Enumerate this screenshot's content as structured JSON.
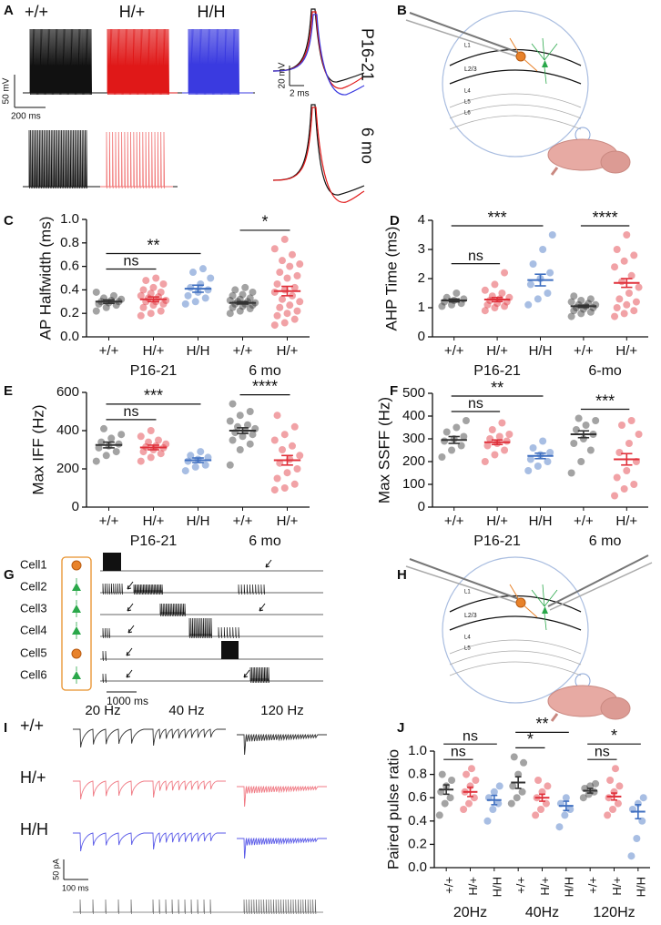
{
  "panel_labels": [
    "A",
    "B",
    "C",
    "D",
    "E",
    "F",
    "G",
    "H",
    "I",
    "J"
  ],
  "a": {
    "genotypes": [
      "+/+",
      "H/+",
      "H/H"
    ],
    "ages": [
      "P16-21",
      "6 mo"
    ],
    "scale_v": "50 mV",
    "scale_t": "200 ms",
    "inset_v": "20 mV",
    "inset_t": "2 ms"
  },
  "b": {
    "layers": [
      "L1",
      "L2/3",
      "L4",
      "L5",
      "L6"
    ]
  },
  "g": {
    "cells": [
      "Cell1",
      "Cell2",
      "Cell3",
      "Cell4",
      "Cell5",
      "Cell6"
    ],
    "scale_t": "1000 ms"
  },
  "h": {
    "layers": [
      "L1",
      "L2/3",
      "L4",
      "L5"
    ]
  },
  "i": {
    "frequencies": [
      "20 Hz",
      "40 Hz",
      "120 Hz"
    ],
    "genotypes": [
      "+/+",
      "H/+",
      "H/H"
    ],
    "scale_i": "50 pA",
    "scale_t": "100 ms"
  },
  "chart_data": [
    {
      "type": "strip",
      "ylabel": "AP Halfwidth (ms)",
      "ylim": [
        0,
        1
      ],
      "yticks": [
        {
          "value": 0,
          "label": "0.0"
        },
        0.2,
        0.4,
        0.6,
        0.8,
        {
          "value": 1,
          "label": "1.0"
        }
      ],
      "groups": [
        {
          "name": "P16-21",
          "categories": [
            {
              "name": "+/+",
              "color": "#333333",
              "mean": 0.3,
              "sem": 0.015,
              "points": [
                0.22,
                0.25,
                0.27,
                0.28,
                0.29,
                0.3,
                0.3,
                0.31,
                0.32,
                0.33,
                0.35,
                0.38
              ]
            },
            {
              "name": "H/+",
              "color": "#e0303a",
              "mean": 0.32,
              "sem": 0.02,
              "points": [
                0.18,
                0.2,
                0.22,
                0.25,
                0.27,
                0.28,
                0.3,
                0.3,
                0.31,
                0.33,
                0.34,
                0.35,
                0.37,
                0.38,
                0.4,
                0.42,
                0.45,
                0.48,
                0.5
              ]
            },
            {
              "name": "H/H",
              "color": "#3f6fc0",
              "mean": 0.41,
              "sem": 0.03,
              "points": [
                0.28,
                0.3,
                0.33,
                0.35,
                0.38,
                0.4,
                0.42,
                0.45,
                0.5,
                0.55,
                0.58
              ]
            }
          ]
        },
        {
          "name": "6 mo",
          "categories": [
            {
              "name": "+/+",
              "color": "#333333",
              "mean": 0.29,
              "sem": 0.01,
              "points": [
                0.2,
                0.22,
                0.24,
                0.25,
                0.26,
                0.27,
                0.28,
                0.28,
                0.29,
                0.3,
                0.3,
                0.31,
                0.32,
                0.33,
                0.35,
                0.36,
                0.38,
                0.4,
                0.42
              ]
            },
            {
              "name": "H/+",
              "color": "#e0303a",
              "mean": 0.39,
              "sem": 0.04,
              "points": [
                0.1,
                0.12,
                0.15,
                0.18,
                0.2,
                0.22,
                0.25,
                0.27,
                0.3,
                0.32,
                0.35,
                0.38,
                0.4,
                0.42,
                0.45,
                0.5,
                0.52,
                0.55,
                0.6,
                0.62,
                0.65,
                0.7,
                0.75,
                0.83
              ]
            }
          ]
        }
      ],
      "comparisons": [
        {
          "label": "ns",
          "pair": [
            0,
            1
          ]
        },
        {
          "label": "**",
          "pair": [
            0,
            2
          ]
        },
        {
          "label": "*",
          "pair": [
            3,
            4
          ]
        }
      ]
    },
    {
      "type": "strip",
      "ylabel": "AHP Time (ms)",
      "ylim": [
        0,
        4
      ],
      "yticks": [
        0,
        1,
        2,
        3,
        4
      ],
      "groups": [
        {
          "name": "P16-21",
          "categories": [
            {
              "name": "+/+",
              "color": "#333333",
              "mean": 1.25,
              "sem": 0.05,
              "points": [
                1.05,
                1.1,
                1.15,
                1.2,
                1.25,
                1.3,
                1.35,
                1.5
              ]
            },
            {
              "name": "H/+",
              "color": "#e0303a",
              "mean": 1.28,
              "sem": 0.07,
              "points": [
                0.9,
                1.0,
                1.05,
                1.1,
                1.15,
                1.2,
                1.25,
                1.3,
                1.35,
                1.4,
                1.5,
                1.6,
                1.8,
                2.2
              ]
            },
            {
              "name": "H/H",
              "color": "#3f6fc0",
              "mean": 1.95,
              "sem": 0.2,
              "points": [
                1.1,
                1.3,
                1.5,
                1.8,
                2.0,
                2.2,
                2.5,
                3.0,
                3.5
              ]
            }
          ]
        },
        {
          "name": "6-mo",
          "categories": [
            {
              "name": "+/+",
              "color": "#333333",
              "mean": 1.05,
              "sem": 0.04,
              "points": [
                0.7,
                0.8,
                0.85,
                0.9,
                0.95,
                1.0,
                1.0,
                1.05,
                1.1,
                1.1,
                1.15,
                1.2,
                1.25,
                1.3,
                1.4
              ]
            },
            {
              "name": "H/+",
              "color": "#e0303a",
              "mean": 1.85,
              "sem": 0.15,
              "points": [
                0.7,
                0.8,
                0.9,
                1.0,
                1.1,
                1.2,
                1.3,
                1.5,
                1.7,
                1.9,
                2.1,
                2.4,
                2.6,
                2.8,
                3.0,
                3.5
              ]
            }
          ]
        }
      ],
      "comparisons": [
        {
          "label": "ns",
          "pair": [
            0,
            1
          ]
        },
        {
          "label": "***",
          "pair": [
            0,
            2
          ]
        },
        {
          "label": "****",
          "pair": [
            3,
            4
          ]
        }
      ]
    },
    {
      "type": "strip",
      "ylabel": "Max IFF (Hz)",
      "ylim": [
        0,
        600
      ],
      "yticks": [
        0,
        200,
        400,
        600
      ],
      "groups": [
        {
          "name": "P16-21",
          "categories": [
            {
              "name": "+/+",
              "color": "#333333",
              "mean": 325,
              "sem": 15,
              "points": [
                240,
                270,
                290,
                310,
                320,
                330,
                340,
                360,
                380,
                410
              ]
            },
            {
              "name": "H/+",
              "color": "#e0303a",
              "mean": 312,
              "sem": 12,
              "points": [
                240,
                260,
                280,
                290,
                300,
                310,
                315,
                320,
                330,
                340,
                350,
                370,
                400
              ]
            },
            {
              "name": "H/H",
              "color": "#3f6fc0",
              "mean": 245,
              "sem": 12,
              "points": [
                190,
                210,
                220,
                240,
                250,
                260,
                270,
                290
              ]
            }
          ]
        },
        {
          "name": "6 mo",
          "categories": [
            {
              "name": "+/+",
              "color": "#333333",
              "mean": 400,
              "sem": 15,
              "points": [
                220,
                300,
                330,
                350,
                370,
                380,
                390,
                400,
                410,
                420,
                430,
                450,
                480,
                500,
                540
              ]
            },
            {
              "name": "H/+",
              "color": "#e0303a",
              "mean": 245,
              "sem": 25,
              "points": [
                90,
                100,
                120,
                150,
                180,
                200,
                230,
                250,
                270,
                300,
                320,
                350,
                380,
                420,
                480
              ]
            }
          ]
        }
      ],
      "comparisons": [
        {
          "label": "ns",
          "pair": [
            0,
            1
          ]
        },
        {
          "label": "***",
          "pair": [
            0,
            2
          ]
        },
        {
          "label": "****",
          "pair": [
            3,
            4
          ]
        }
      ]
    },
    {
      "type": "strip",
      "ylabel": "Max SSFF (Hz)",
      "ylim": [
        0,
        500
      ],
      "yticks": [
        0,
        100,
        200,
        300,
        400,
        500
      ],
      "groups": [
        {
          "name": "P16-21",
          "categories": [
            {
              "name": "+/+",
              "color": "#333333",
              "mean": 295,
              "sem": 15,
              "points": [
                220,
                250,
                270,
                290,
                300,
                310,
                330,
                350,
                380
              ]
            },
            {
              "name": "H/+",
              "color": "#e0303a",
              "mean": 285,
              "sem": 10,
              "points": [
                200,
                230,
                250,
                270,
                280,
                290,
                300,
                310,
                320,
                340,
                370
              ]
            },
            {
              "name": "H/H",
              "color": "#3f6fc0",
              "mean": 225,
              "sem": 12,
              "points": [
                160,
                180,
                200,
                210,
                230,
                240,
                260,
                290
              ]
            }
          ]
        },
        {
          "name": "6 mo",
          "categories": [
            {
              "name": "+/+",
              "color": "#333333",
              "mean": 320,
              "sem": 15,
              "points": [
                150,
                200,
                250,
                280,
                300,
                320,
                340,
                360,
                380,
                390
              ]
            },
            {
              "name": "H/+",
              "color": "#e0303a",
              "mean": 210,
              "sem": 25,
              "points": [
                50,
                80,
                100,
                130,
                160,
                200,
                240,
                280,
                320,
                360,
                380
              ]
            }
          ]
        }
      ],
      "comparisons": [
        {
          "label": "ns",
          "pair": [
            0,
            1
          ]
        },
        {
          "label": "**",
          "pair": [
            0,
            2
          ]
        },
        {
          "label": "***",
          "pair": [
            3,
            4
          ]
        }
      ]
    },
    {
      "type": "strip",
      "ylabel": "Paired pulse ratio",
      "ylim": [
        0,
        1
      ],
      "yticks": [
        {
          "value": 0,
          "label": "0.0"
        },
        0.2,
        0.4,
        0.6,
        0.8,
        {
          "value": 1,
          "label": "1.0"
        }
      ],
      "groups": [
        {
          "name": "20Hz",
          "categories": [
            {
              "name": "+/+",
              "color": "#333333",
              "mean": 0.67,
              "sem": 0.04,
              "points": [
                0.45,
                0.55,
                0.6,
                0.65,
                0.7,
                0.75,
                0.8
              ]
            },
            {
              "name": "H/+",
              "color": "#e0303a",
              "mean": 0.65,
              "sem": 0.04,
              "points": [
                0.5,
                0.55,
                0.6,
                0.65,
                0.7,
                0.75,
                0.8,
                0.85
              ]
            },
            {
              "name": "H/H",
              "color": "#3f6fc0",
              "mean": 0.58,
              "sem": 0.04,
              "points": [
                0.4,
                0.5,
                0.55,
                0.6,
                0.65,
                0.7
              ]
            }
          ]
        },
        {
          "name": "40Hz",
          "categories": [
            {
              "name": "+/+",
              "color": "#333333",
              "mean": 0.73,
              "sem": 0.05,
              "points": [
                0.55,
                0.6,
                0.65,
                0.7,
                0.8,
                0.9,
                0.95
              ]
            },
            {
              "name": "H/+",
              "color": "#e0303a",
              "mean": 0.6,
              "sem": 0.03,
              "points": [
                0.45,
                0.5,
                0.55,
                0.6,
                0.65,
                0.7,
                0.75
              ]
            },
            {
              "name": "H/H",
              "color": "#3f6fc0",
              "mean": 0.53,
              "sem": 0.04,
              "points": [
                0.35,
                0.45,
                0.5,
                0.55,
                0.6
              ]
            }
          ]
        },
        {
          "name": "120Hz",
          "categories": [
            {
              "name": "+/+",
              "color": "#333333",
              "mean": 0.66,
              "sem": 0.02,
              "points": [
                0.6,
                0.63,
                0.65,
                0.68,
                0.7,
                0.72
              ]
            },
            {
              "name": "H/+",
              "color": "#e0303a",
              "mean": 0.61,
              "sem": 0.03,
              "points": [
                0.45,
                0.5,
                0.55,
                0.6,
                0.65,
                0.7,
                0.75,
                0.85
              ]
            },
            {
              "name": "H/H",
              "color": "#3f6fc0",
              "mean": 0.48,
              "sem": 0.06,
              "points": [
                0.1,
                0.25,
                0.4,
                0.5,
                0.55,
                0.6
              ]
            }
          ]
        }
      ],
      "comparisons": [
        {
          "label": "ns",
          "pair": [
            0,
            1
          ]
        },
        {
          "label": "ns",
          "pair": [
            0,
            2
          ]
        },
        {
          "label": "*",
          "pair": [
            3,
            4
          ]
        },
        {
          "label": "**",
          "pair": [
            3,
            5
          ]
        },
        {
          "label": "ns",
          "pair": [
            6,
            7
          ]
        },
        {
          "label": "*",
          "pair": [
            6,
            8
          ]
        }
      ]
    }
  ]
}
